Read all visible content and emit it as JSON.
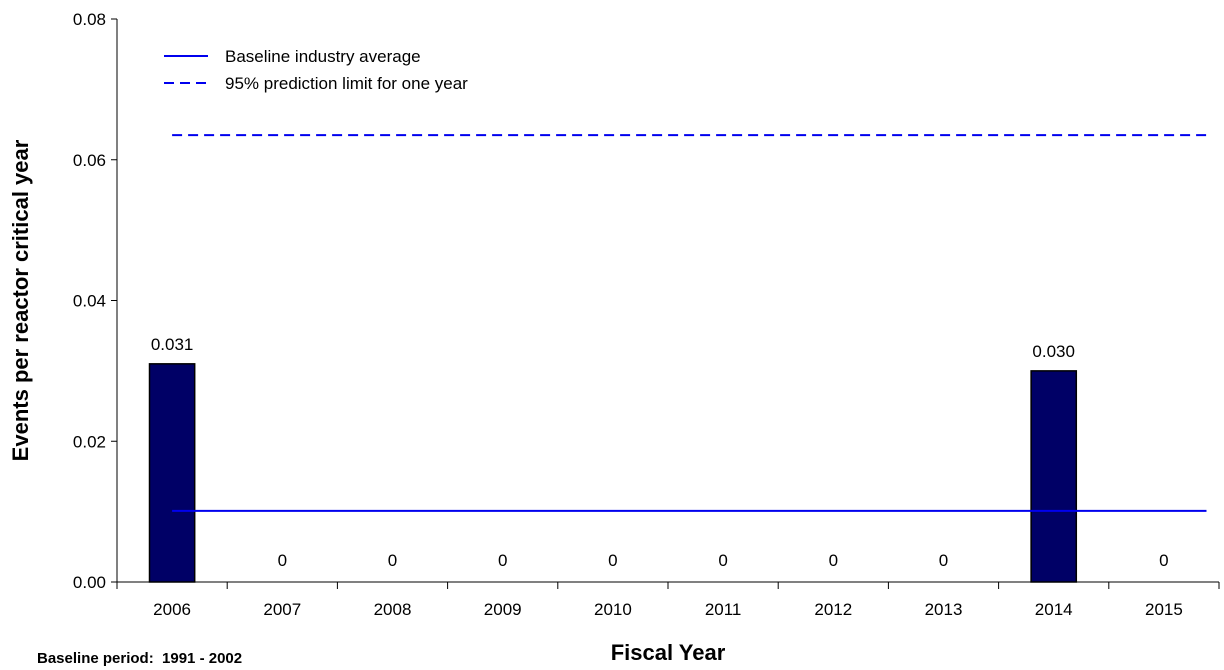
{
  "chart_data": {
    "type": "bar",
    "xlabel": "Fiscal Year",
    "ylabel": "Events per reactor critical year",
    "categories": [
      "2006",
      "2007",
      "2008",
      "2009",
      "2010",
      "2011",
      "2012",
      "2013",
      "2014",
      "2015"
    ],
    "values": [
      0.031,
      0,
      0,
      0,
      0,
      0,
      0,
      0,
      0.03,
      0
    ],
    "value_labels": [
      "0.031",
      "0",
      "0",
      "0",
      "0",
      "0",
      "0",
      "0",
      "0.030",
      "0"
    ],
    "ylim": [
      0,
      0.08
    ],
    "yticks": [
      "0.00",
      "0.02",
      "0.04",
      "0.06",
      "0.08"
    ],
    "bar_color": "#000066",
    "lines": [
      {
        "name": "Baseline industry average",
        "value": 0.0101,
        "style": "solid",
        "color": "#0000ee"
      },
      {
        "name": "95% prediction limit for one year",
        "value": 0.0635,
        "style": "dashed",
        "color": "#0000ee"
      }
    ],
    "legend_position": "top-left",
    "grid": false
  },
  "footnote": "Baseline period:  1991 - 2002"
}
